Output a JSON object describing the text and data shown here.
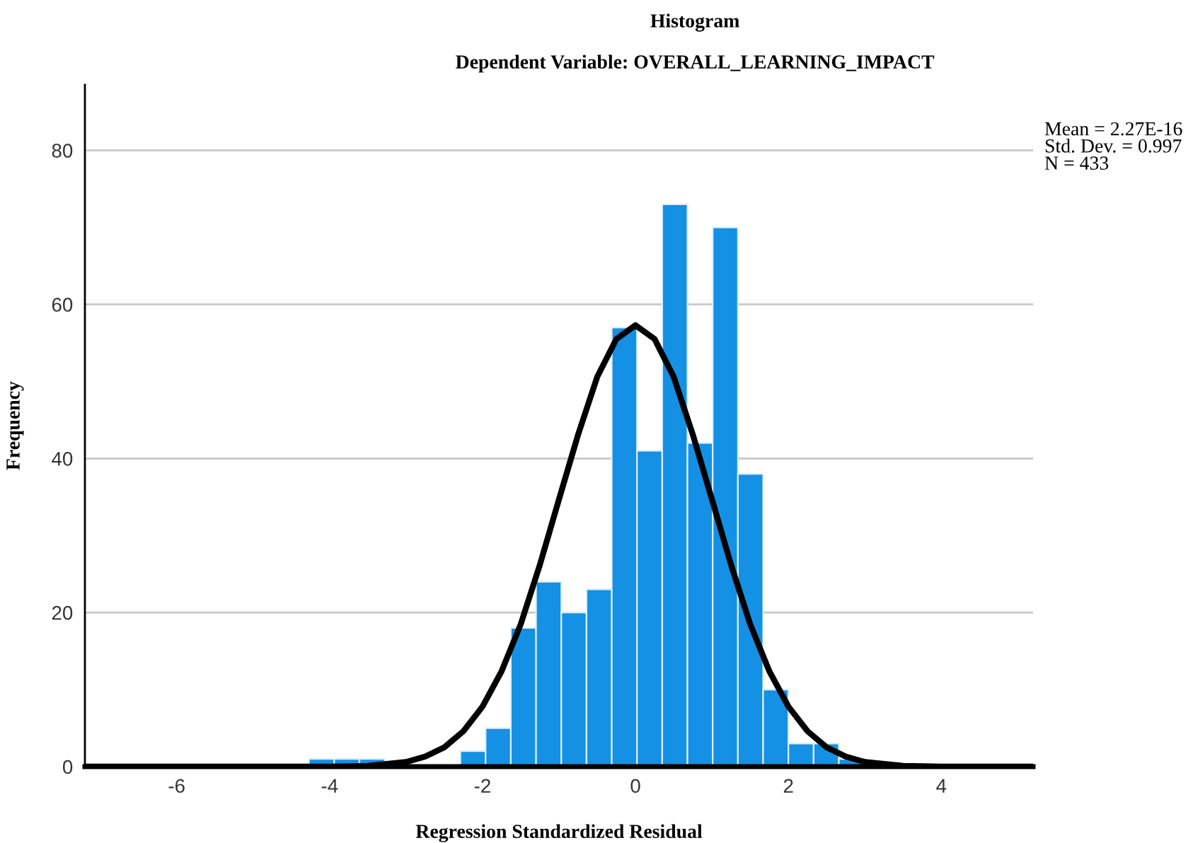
{
  "chart_data": {
    "type": "histogram",
    "title": "Histogram",
    "subtitle": "Dependent Variable: OVERALL_LEARNING_IMPACT",
    "xlabel": "Regression Standardized Residual",
    "ylabel": "Frequency",
    "annotations": [
      "Mean = 2.27E-16\nStd. Dev. = 0.997\nN = 433"
    ],
    "series": [
      {
        "color": "#1490e4",
        "bins": [
          -4.27,
          -3.94,
          -3.61,
          -3.28,
          -2.95,
          -2.62,
          -2.29,
          -1.96,
          -1.63,
          -1.3,
          -0.97,
          -0.64,
          -0.31,
          0.02,
          0.35,
          0.68,
          1.01,
          1.34,
          1.67,
          2.0,
          2.33,
          2.66,
          2.99
        ],
        "values": [
          1,
          1,
          1,
          0,
          0,
          0,
          2,
          5,
          18,
          24,
          20,
          23,
          57,
          41,
          73,
          42,
          70,
          38,
          10,
          3,
          3,
          1
        ]
      },
      {
        "type": "line",
        "color": "#000000",
        "x": [
          -7.2,
          -4,
          -3.5,
          -3,
          -2.75,
          -2.5,
          -2.25,
          -2,
          -1.75,
          -1.5,
          -1.25,
          -1,
          -0.75,
          -0.5,
          -0.25,
          0,
          0.25,
          0.5,
          0.75,
          1,
          1.25,
          1.5,
          1.75,
          2,
          2.25,
          2.5,
          2.75,
          3,
          3.5,
          4,
          5.2
        ],
        "values": [
          0,
          0,
          0.1,
          0.6,
          1.3,
          2.5,
          4.6,
          7.8,
          12.4,
          18.5,
          26.2,
          34.7,
          43.1,
          50.6,
          55.5,
          57.3,
          55.5,
          50.6,
          43.1,
          34.7,
          26.2,
          18.5,
          12.4,
          7.8,
          4.6,
          2.5,
          1.3,
          0.6,
          0.1,
          0,
          0
        ]
      }
    ],
    "xlim": [
      -7.2,
      5.2
    ],
    "ylim": [
      0,
      88.5
    ],
    "xticks": [
      -6,
      -4,
      -2,
      0,
      2,
      4
    ],
    "yticks": [
      0,
      20,
      40,
      60,
      80
    ],
    "grid": "y",
    "legend": false
  }
}
